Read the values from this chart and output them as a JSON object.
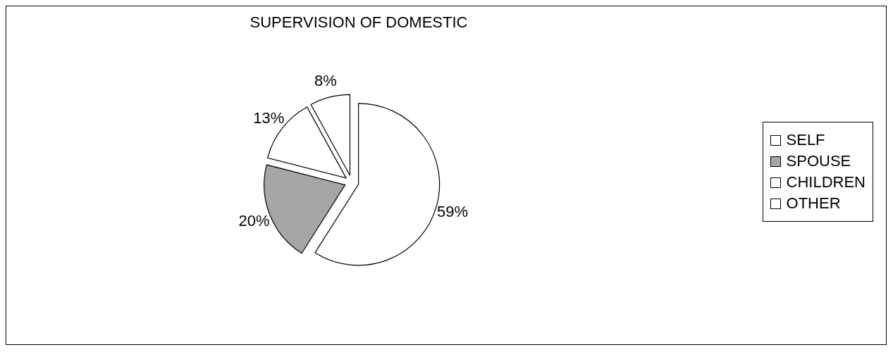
{
  "chart_data": {
    "type": "pie",
    "title": "SUPERVISION OF DOMESTIC",
    "categories": [
      "SELF",
      "SPOUSE",
      "CHILDREN",
      "OTHER"
    ],
    "values": [
      59,
      20,
      13,
      8
    ],
    "value_labels": [
      "59%",
      "20%",
      "13%",
      "8%"
    ],
    "colors": [
      "#ffffff",
      "#a6a6a6",
      "#ffffff",
      "#ffffff"
    ],
    "legend": "right"
  }
}
